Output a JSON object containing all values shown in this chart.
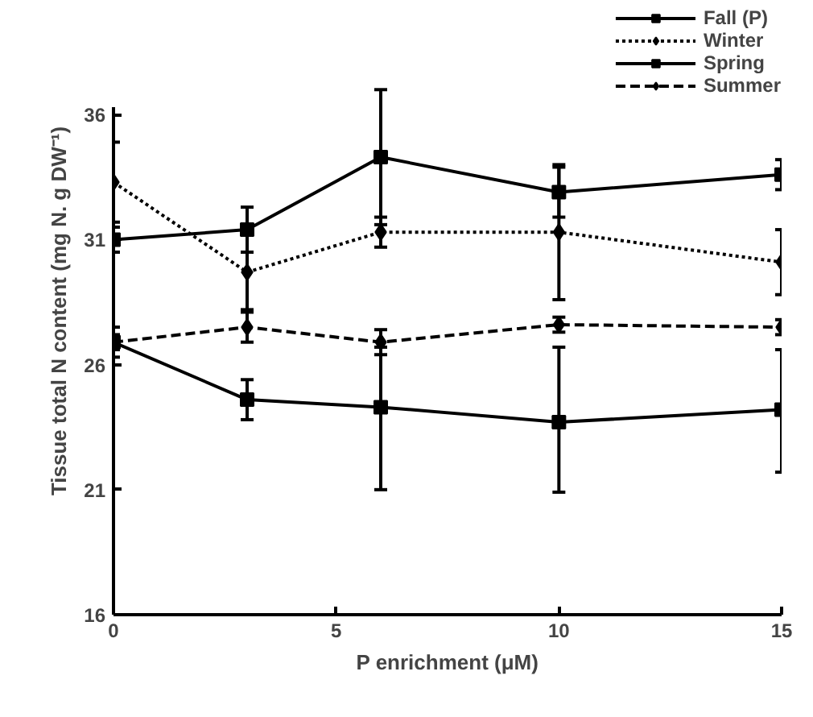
{
  "chart_data": {
    "type": "line",
    "xlabel": "P enrichment (μM)",
    "ylabel": "Tissue total N content (mg N. g DW⁻¹)",
    "x": [
      0,
      3,
      6,
      10,
      15
    ],
    "series": [
      {
        "name": "Fall (P)",
        "color": "#000000",
        "marker": "square",
        "line_style": "solid",
        "values": [
          26.9,
          24.6,
          24.3,
          23.7,
          24.2
        ],
        "errors": [
          0.3,
          0.8,
          [
            21.0,
            26.7
          ],
          [
            20.9,
            26.7
          ],
          [
            21.7,
            26.6
          ]
        ]
      },
      {
        "name": "Winter",
        "color": "#000000",
        "marker": "diamond",
        "line_style": "dotted",
        "values": [
          33.3,
          29.7,
          31.3,
          31.3,
          30.1
        ],
        "errors": [
          1.6,
          1.5,
          0.6,
          2.7,
          1.3
        ]
      },
      {
        "name": "Spring",
        "color": "#000000",
        "marker": "square",
        "line_style": "solid",
        "values": [
          31.0,
          31.4,
          34.3,
          32.9,
          33.6
        ],
        "errors": [
          0.5,
          0.9,
          2.7,
          1.0,
          0.6
        ]
      },
      {
        "name": "Summer",
        "color": "#000000",
        "marker": "diamond",
        "line_style": "dashed",
        "values": [
          26.9,
          27.5,
          26.9,
          27.6,
          27.5
        ],
        "errors": [
          0.6,
          0.6,
          0.5,
          0.3,
          0.3
        ]
      }
    ],
    "xlim": [
      0,
      15
    ],
    "xticks": [
      0,
      5,
      10,
      15
    ],
    "ylim": [
      16,
      36.3
    ],
    "yticks": [
      16,
      21,
      26,
      31,
      36
    ],
    "legend": "top right",
    "grid": false
  }
}
